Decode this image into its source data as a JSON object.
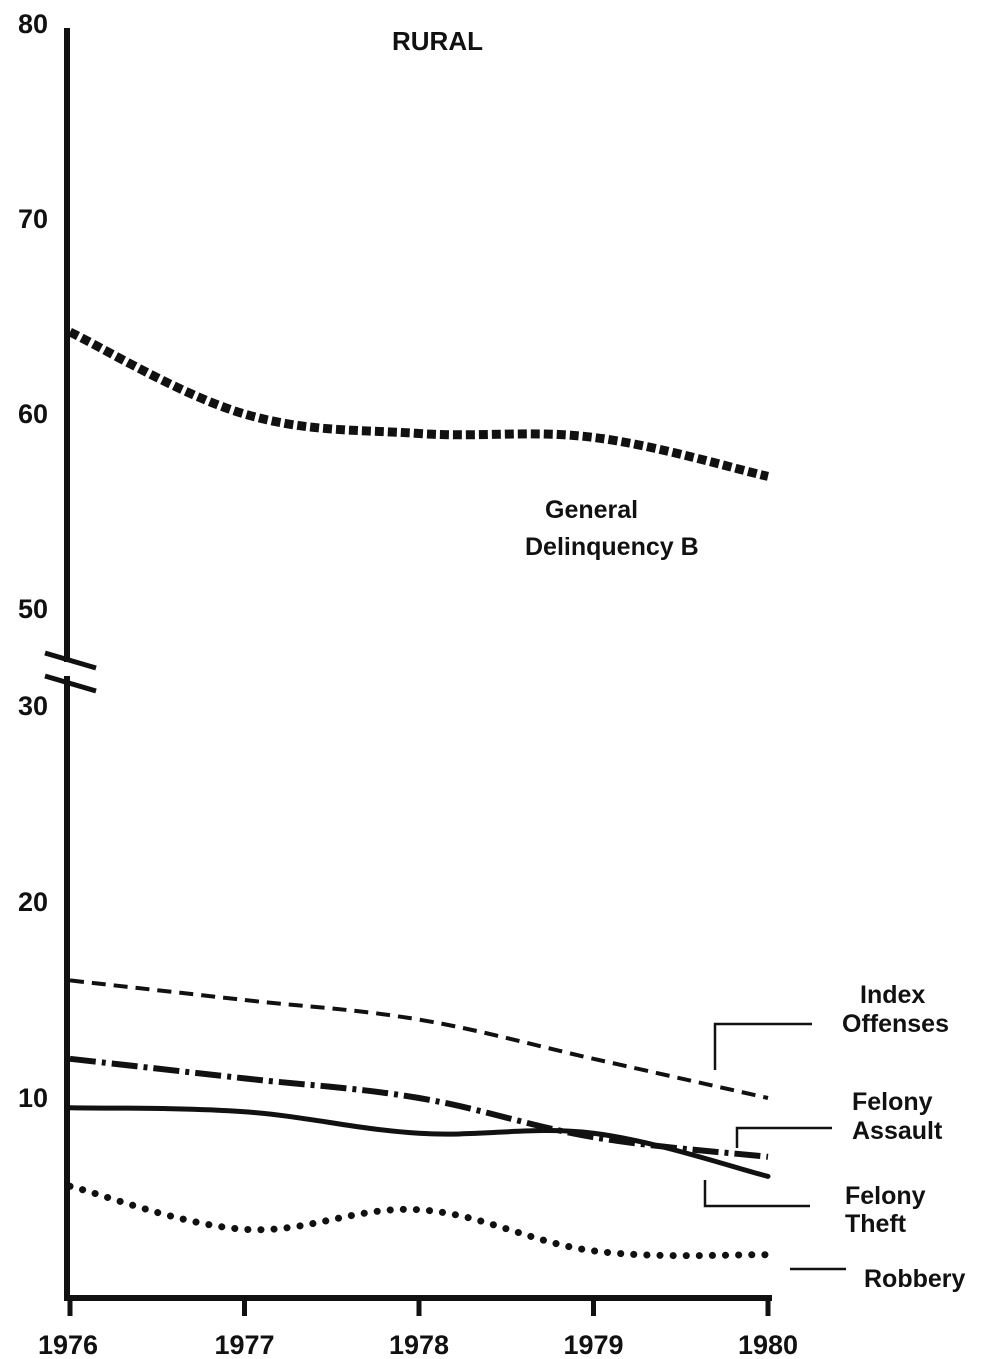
{
  "chart_data": {
    "type": "line",
    "title": "RURAL",
    "xlabel": "",
    "ylabel": "",
    "x": [
      "1976",
      "1977",
      "1978",
      "1979",
      "1980"
    ],
    "y_ticks": [
      "10",
      "20",
      "30",
      "50",
      "60",
      "70",
      "80"
    ],
    "y_axis_break": [
      30,
      50
    ],
    "ylim": [
      0,
      80
    ],
    "grid": false,
    "legend": "inline labels at right",
    "series": [
      {
        "name": "General Delinquency B",
        "style": "dotted-heavy",
        "values": [
          64.2,
          60,
          59,
          58.8,
          56.8
        ]
      },
      {
        "name": "Index Offenses",
        "style": "dashed",
        "values": [
          16,
          15,
          14,
          12,
          10
        ]
      },
      {
        "name": "Felony Assault",
        "style": "dash-dot",
        "values": [
          12,
          11,
          10,
          8,
          7
        ]
      },
      {
        "name": "Felony Theft",
        "style": "solid",
        "values": [
          9.5,
          9.3,
          8.2,
          8.2,
          6
        ]
      },
      {
        "name": "Robbery",
        "style": "dotted",
        "values": [
          5.5,
          3.3,
          4.3,
          2.2,
          2
        ]
      }
    ]
  }
}
